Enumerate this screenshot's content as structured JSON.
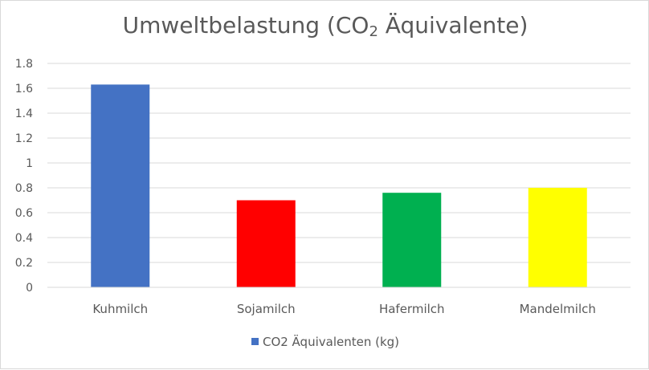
{
  "chart_data": {
    "type": "bar",
    "title_main": "Umweltbelastung (CO",
    "title_sub": "2",
    "title_tail": " Äquivalente)",
    "categories": [
      "Kuhmilch",
      "Sojamilch",
      "Hafermilch",
      "Mandelmilch"
    ],
    "series": [
      {
        "name": "CO2 Äquivalenten (kg)",
        "values": [
          1.63,
          0.7,
          0.76,
          0.8
        ],
        "colors": [
          "#4472c4",
          "#ff0000",
          "#00b050",
          "#ffff00"
        ]
      }
    ],
    "ylim": [
      0,
      1.8
    ],
    "yticks": [
      "0",
      "0.2",
      "0.4",
      "0.6",
      "0.8",
      "1",
      "1.2",
      "1.4",
      "1.6",
      "1.8"
    ],
    "grid": true,
    "legend_position": "bottom",
    "legend_color": "#4472c4"
  }
}
